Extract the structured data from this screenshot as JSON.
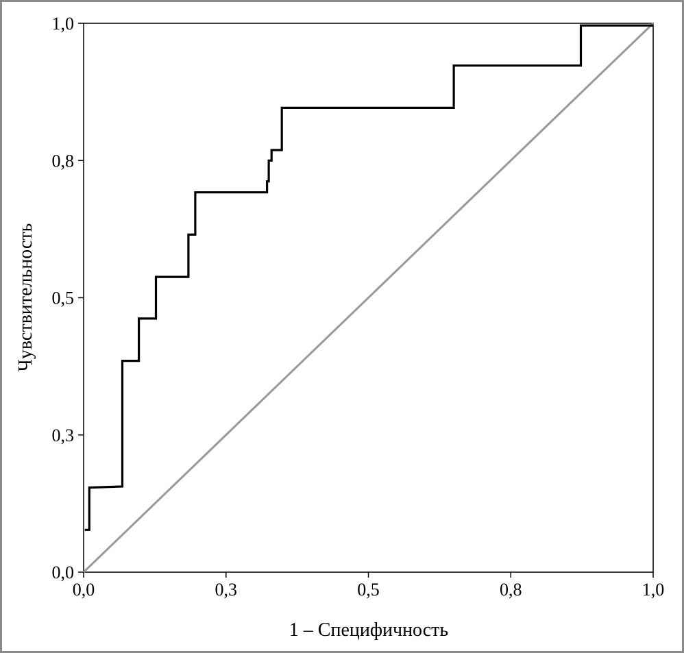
{
  "chart_data": {
    "type": "line",
    "title": "",
    "xlabel": "1 – Специфичность",
    "ylabel": "Чувствительность",
    "xlim": [
      0,
      1
    ],
    "ylim": [
      0,
      1
    ],
    "grid": false,
    "legend": "none",
    "x_ticks": [
      {
        "value": 0.0,
        "label": "0,0"
      },
      {
        "value": 0.25,
        "label": "0,3"
      },
      {
        "value": 0.5,
        "label": "0,5"
      },
      {
        "value": 0.75,
        "label": "0,8"
      },
      {
        "value": 1.0,
        "label": "1,0"
      }
    ],
    "y_ticks": [
      {
        "value": 0.0,
        "label": "0,0"
      },
      {
        "value": 0.25,
        "label": "0,3"
      },
      {
        "value": 0.5,
        "label": "0,5"
      },
      {
        "value": 0.75,
        "label": "0,8"
      },
      {
        "value": 1.0,
        "label": "1,0"
      }
    ],
    "series": [
      {
        "color": "#000000",
        "step": true,
        "points": [
          [
            0.002,
            0.077
          ],
          [
            0.01,
            0.077
          ],
          [
            0.01,
            0.154
          ],
          [
            0.068,
            0.156
          ],
          [
            0.068,
            0.385
          ],
          [
            0.097,
            0.385
          ],
          [
            0.097,
            0.462
          ],
          [
            0.127,
            0.462
          ],
          [
            0.127,
            0.538
          ],
          [
            0.184,
            0.538
          ],
          [
            0.184,
            0.615
          ],
          [
            0.196,
            0.615
          ],
          [
            0.196,
            0.692
          ],
          [
            0.322,
            0.692
          ],
          [
            0.322,
            0.712
          ],
          [
            0.325,
            0.712
          ],
          [
            0.325,
            0.75
          ],
          [
            0.33,
            0.75
          ],
          [
            0.33,
            0.769
          ],
          [
            0.348,
            0.769
          ],
          [
            0.348,
            0.846
          ],
          [
            0.65,
            0.846
          ],
          [
            0.65,
            0.923
          ],
          [
            0.873,
            0.923
          ],
          [
            0.873,
            0.996
          ],
          [
            1.0,
            0.996
          ]
        ]
      },
      {
        "color": "#999999",
        "step": false,
        "points": [
          [
            0,
            0
          ],
          [
            1,
            1
          ]
        ]
      }
    ]
  }
}
